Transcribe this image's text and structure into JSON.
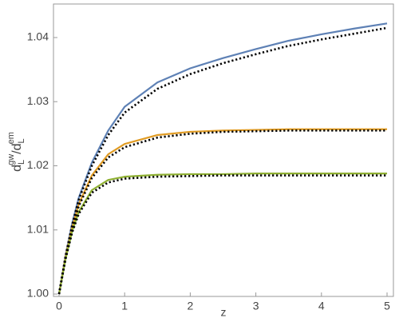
{
  "chart_data": {
    "type": "line",
    "xlabel": "z",
    "ylabel": [
      "d",
      "L",
      "gw",
      "/",
      "d",
      "L",
      "em"
    ],
    "x": [
      0,
      0.1,
      0.2,
      0.3,
      0.5,
      0.75,
      1,
      1.5,
      2,
      2.5,
      3,
      3.5,
      4,
      4.5,
      5
    ],
    "series": [
      {
        "color": "#5e81b5",
        "style": "solid",
        "values": [
          1.0,
          1.006,
          1.011,
          1.015,
          1.0205,
          1.0255,
          1.0292,
          1.033,
          1.0352,
          1.0368,
          1.0382,
          1.0395,
          1.0405,
          1.0414,
          1.0422
        ]
      },
      {
        "color": "#e19c24",
        "style": "solid",
        "values": [
          1.0,
          1.0058,
          1.0104,
          1.014,
          1.0185,
          1.0218,
          1.0234,
          1.0248,
          1.0253,
          1.0255,
          1.0256,
          1.0257,
          1.0257,
          1.0257,
          1.0257
        ]
      },
      {
        "color": "#8fb032",
        "style": "solid",
        "values": [
          1.0,
          1.0055,
          1.0098,
          1.0128,
          1.0162,
          1.0178,
          1.0183,
          1.0186,
          1.0187,
          1.0187,
          1.0188,
          1.0188,
          1.0188,
          1.0188,
          1.0188
        ]
      },
      {
        "color": "#000000",
        "style": "dotted",
        "values": [
          1.0,
          1.006,
          1.0108,
          1.0147,
          1.02,
          1.0248,
          1.0283,
          1.032,
          1.0343,
          1.036,
          1.0374,
          1.0387,
          1.0397,
          1.0406,
          1.0415
        ]
      },
      {
        "color": "#000000",
        "style": "dotted",
        "values": [
          1.0,
          1.0058,
          1.0102,
          1.0137,
          1.0181,
          1.0213,
          1.0229,
          1.0244,
          1.025,
          1.0253,
          1.0254,
          1.0255,
          1.0255,
          1.0255,
          1.0255
        ]
      },
      {
        "color": "#000000",
        "style": "dotted",
        "values": [
          1.0,
          1.0055,
          1.0096,
          1.0125,
          1.0158,
          1.0174,
          1.018,
          1.0183,
          1.0184,
          1.0185,
          1.0185,
          1.0185,
          1.0185,
          1.0185,
          1.0185
        ]
      }
    ],
    "xlim": [
      -0.085,
      5.097
    ],
    "ylim": [
      0.99963,
      1.04523
    ],
    "xticks": [
      0,
      1,
      2,
      3,
      4,
      5
    ],
    "yticks": [
      {
        "value": 1,
        "label": "1.00"
      },
      1.01,
      1.02,
      1.03,
      1.04
    ],
    "grid": false
  }
}
